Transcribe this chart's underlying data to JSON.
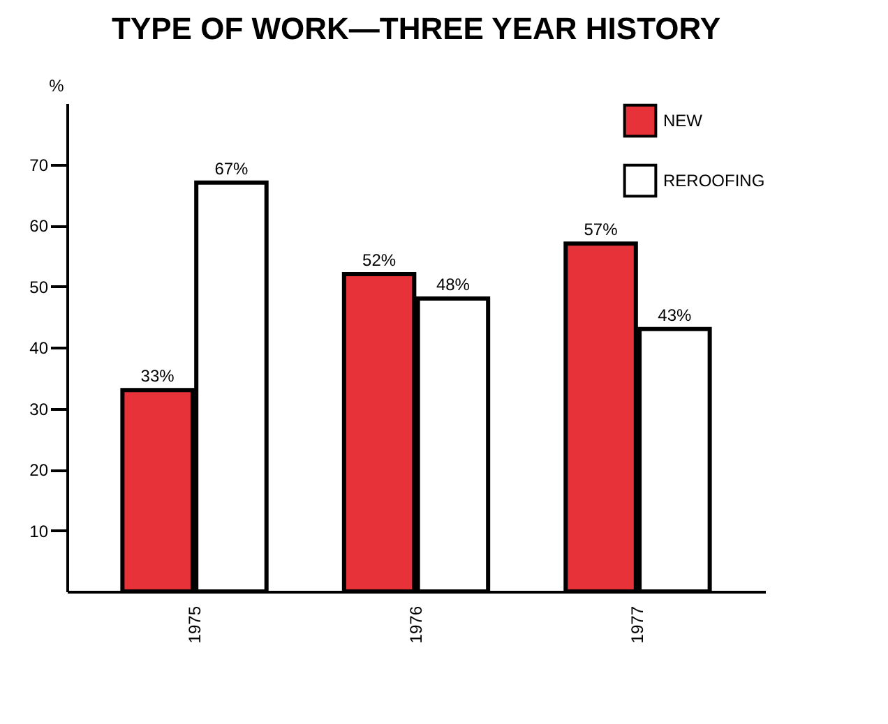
{
  "chart_data": {
    "type": "bar",
    "title": "TYPE OF WORK—THREE YEAR HISTORY",
    "ylabel": "%",
    "categories": [
      "1975",
      "1976",
      "1977"
    ],
    "series": [
      {
        "name": "NEW",
        "color": "#e8323a",
        "values": [
          33,
          52,
          57
        ],
        "value_labels": [
          "33%",
          "52%",
          "57%"
        ]
      },
      {
        "name": "REROOFING",
        "color": "#ffffff",
        "values": [
          67,
          48,
          43
        ],
        "value_labels": [
          "67%",
          "48%",
          "43%"
        ]
      }
    ],
    "ylim": [
      0,
      80
    ],
    "yticks": [
      10,
      20,
      30,
      40,
      50,
      60,
      70
    ],
    "grid": false,
    "legend": "top right"
  }
}
